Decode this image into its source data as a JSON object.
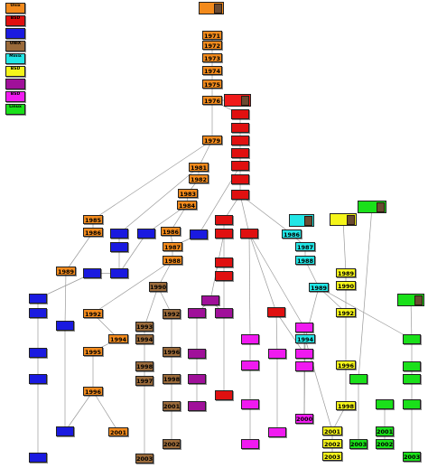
{
  "legend": [
    {
      "label": "Unix",
      "sub": "",
      "color": "#f28a1c"
    },
    {
      "label": "BSD",
      "sub": "",
      "color": "#e01010"
    },
    {
      "label": "",
      "sub": "",
      "color": "#1a1ae0"
    },
    {
      "label": "UNIX",
      "sub": "",
      "color": "#9a6a3a"
    },
    {
      "label": "Minix",
      "sub": "",
      "color": "#22e6e6"
    },
    {
      "label": "BSD",
      "sub": "",
      "color": "#f5f51a"
    },
    {
      "label": "",
      "sub": "",
      "color": "#a0109a"
    },
    {
      "label": "BSD",
      "sub": "",
      "color": "#f01af0"
    },
    {
      "label": "Linux",
      "sub": "",
      "color": "#1ae01a"
    }
  ],
  "colors": {
    "orange": "#f28a1c",
    "red": "#e01010",
    "blue": "#1a1ae0",
    "brown": "#9a6a3a",
    "cyan": "#22e6e6",
    "yellow": "#f5f51a",
    "purple": "#a0109a",
    "magenta": "#f01af0",
    "green": "#1ae01a"
  },
  "nodes": [
    {
      "id": "o1971",
      "year": "1971",
      "color": "orange"
    },
    {
      "id": "o1972",
      "year": "1972",
      "color": "orange"
    },
    {
      "id": "o1973",
      "year": "1973",
      "color": "orange"
    },
    {
      "id": "o1974",
      "year": "1974",
      "color": "orange"
    },
    {
      "id": "o1975",
      "year": "1975",
      "color": "orange"
    },
    {
      "id": "o1976",
      "year": "1976",
      "color": "orange"
    },
    {
      "id": "o1979",
      "year": "1979",
      "color": "orange"
    },
    {
      "id": "o1981",
      "year": "1981",
      "color": "orange"
    },
    {
      "id": "o1982",
      "year": "1982",
      "color": "orange"
    },
    {
      "id": "o1983",
      "year": "1983",
      "color": "orange"
    },
    {
      "id": "o1984",
      "year": "1984",
      "color": "orange"
    },
    {
      "id": "o1985a",
      "year": "1985",
      "color": "orange"
    },
    {
      "id": "o1986a",
      "year": "1986",
      "color": "orange"
    },
    {
      "id": "o1986b",
      "year": "1986",
      "color": "orange"
    },
    {
      "id": "o1987",
      "year": "1987",
      "color": "orange"
    },
    {
      "id": "o1988",
      "year": "1988",
      "color": "orange"
    },
    {
      "id": "o1989",
      "year": "1989",
      "color": "orange"
    },
    {
      "id": "o1992",
      "year": "1992",
      "color": "orange"
    },
    {
      "id": "o1994",
      "year": "1994",
      "color": "orange"
    },
    {
      "id": "o1995",
      "year": "1995",
      "color": "orange"
    },
    {
      "id": "o1996",
      "year": "1996",
      "color": "orange"
    },
    {
      "id": "o2001",
      "year": "2001",
      "color": "orange"
    },
    {
      "id": "r1",
      "year": "",
      "color": "red"
    },
    {
      "id": "r2",
      "year": "",
      "color": "red"
    },
    {
      "id": "r3",
      "year": "",
      "color": "red"
    },
    {
      "id": "r4",
      "year": "",
      "color": "red"
    },
    {
      "id": "r5",
      "year": "",
      "color": "red"
    },
    {
      "id": "r6",
      "year": "",
      "color": "red"
    },
    {
      "id": "r7",
      "year": "",
      "color": "red"
    },
    {
      "id": "r8",
      "year": "",
      "color": "red"
    },
    {
      "id": "r9",
      "year": "",
      "color": "red"
    },
    {
      "id": "r10",
      "year": "",
      "color": "red"
    },
    {
      "id": "r11",
      "year": "",
      "color": "red"
    },
    {
      "id": "r12",
      "year": "",
      "color": "red"
    },
    {
      "id": "r13",
      "year": "",
      "color": "red"
    },
    {
      "id": "r14",
      "year": "",
      "color": "red"
    },
    {
      "id": "b1",
      "year": "",
      "color": "blue"
    },
    {
      "id": "b2",
      "year": "",
      "color": "blue"
    },
    {
      "id": "b3",
      "year": "",
      "color": "blue"
    },
    {
      "id": "b4",
      "year": "",
      "color": "blue"
    },
    {
      "id": "b5",
      "year": "",
      "color": "blue"
    },
    {
      "id": "b6",
      "year": "",
      "color": "blue"
    },
    {
      "id": "b7",
      "year": "",
      "color": "blue"
    },
    {
      "id": "b8",
      "year": "",
      "color": "blue"
    },
    {
      "id": "b9",
      "year": "",
      "color": "blue"
    },
    {
      "id": "b10",
      "year": "",
      "color": "blue"
    },
    {
      "id": "b11",
      "year": "",
      "color": "blue"
    },
    {
      "id": "b12",
      "year": "",
      "color": "blue"
    },
    {
      "id": "b13",
      "year": "",
      "color": "blue"
    },
    {
      "id": "br1",
      "year": "1990",
      "color": "brown"
    },
    {
      "id": "br2",
      "year": "1992",
      "color": "brown"
    },
    {
      "id": "br3",
      "year": "1993",
      "color": "brown"
    },
    {
      "id": "br4",
      "year": "1994",
      "color": "brown"
    },
    {
      "id": "br5",
      "year": "1996",
      "color": "brown"
    },
    {
      "id": "br6",
      "year": "1997",
      "color": "brown"
    },
    {
      "id": "br7",
      "year": "1998",
      "color": "brown"
    },
    {
      "id": "br8",
      "year": "1998",
      "color": "brown"
    },
    {
      "id": "br9",
      "year": "2001",
      "color": "brown"
    },
    {
      "id": "br10",
      "year": "2002",
      "color": "brown"
    },
    {
      "id": "br11",
      "year": "2003",
      "color": "brown"
    },
    {
      "id": "c1986",
      "year": "1986",
      "color": "cyan"
    },
    {
      "id": "c1987",
      "year": "1987",
      "color": "cyan"
    },
    {
      "id": "c1988",
      "year": "1988",
      "color": "cyan"
    },
    {
      "id": "c1989",
      "year": "1989",
      "color": "cyan"
    },
    {
      "id": "c1994",
      "year": "1994",
      "color": "cyan"
    },
    {
      "id": "y1989",
      "year": "1989",
      "color": "yellow"
    },
    {
      "id": "y1990",
      "year": "1990",
      "color": "yellow"
    },
    {
      "id": "y1992",
      "year": "1992",
      "color": "yellow"
    },
    {
      "id": "y1996",
      "year": "1996",
      "color": "yellow"
    },
    {
      "id": "y1998",
      "year": "1998",
      "color": "yellow"
    },
    {
      "id": "y2001",
      "year": "2001",
      "color": "yellow"
    },
    {
      "id": "y2002",
      "year": "2002",
      "color": "yellow"
    },
    {
      "id": "y2003",
      "year": "2003",
      "color": "yellow"
    },
    {
      "id": "p1",
      "year": "",
      "color": "purple"
    },
    {
      "id": "p2",
      "year": "",
      "color": "purple"
    },
    {
      "id": "p3",
      "year": "",
      "color": "purple"
    },
    {
      "id": "p4",
      "year": "",
      "color": "purple"
    },
    {
      "id": "p5",
      "year": "",
      "color": "purple"
    },
    {
      "id": "p6",
      "year": "",
      "color": "purple"
    },
    {
      "id": "m1",
      "year": "",
      "color": "magenta"
    },
    {
      "id": "m2",
      "year": "",
      "color": "magenta"
    },
    {
      "id": "m3",
      "year": "",
      "color": "magenta"
    },
    {
      "id": "m4",
      "year": "",
      "color": "magenta"
    },
    {
      "id": "m5",
      "year": "",
      "color": "magenta"
    },
    {
      "id": "m6",
      "year": "",
      "color": "magenta"
    },
    {
      "id": "m7",
      "year": "",
      "color": "magenta"
    },
    {
      "id": "m8",
      "year": "",
      "color": "magenta"
    },
    {
      "id": "m9",
      "year": "",
      "color": "magenta"
    },
    {
      "id": "m10",
      "year": "2000",
      "color": "magenta"
    },
    {
      "id": "g1",
      "year": "",
      "color": "green"
    },
    {
      "id": "g2",
      "year": "",
      "color": "green"
    },
    {
      "id": "g3",
      "year": "",
      "color": "green"
    },
    {
      "id": "g4",
      "year": "",
      "color": "green"
    },
    {
      "id": "g5",
      "year": "",
      "color": "green"
    },
    {
      "id": "g6",
      "year": "",
      "color": "green"
    },
    {
      "id": "g7",
      "year": "2001",
      "color": "green"
    },
    {
      "id": "g8",
      "year": "2002",
      "color": "green"
    },
    {
      "id": "g9",
      "year": "2003",
      "color": "green"
    },
    {
      "id": "g10",
      "year": "2003",
      "color": "green"
    }
  ],
  "notes": [
    {
      "id": "n-top",
      "text": "",
      "color": "#f28a1c"
    },
    {
      "id": "n-bsd",
      "text": "",
      "color": "#f01a1a"
    },
    {
      "id": "n-minix",
      "text": "",
      "color": "#22e6e6"
    },
    {
      "id": "n-yellow",
      "text": "",
      "color": "#f5f51a"
    },
    {
      "id": "n-green1",
      "text": "",
      "color": "#1ae01a"
    },
    {
      "id": "n-green2",
      "text": "",
      "color": "#1ae01a"
    }
  ]
}
